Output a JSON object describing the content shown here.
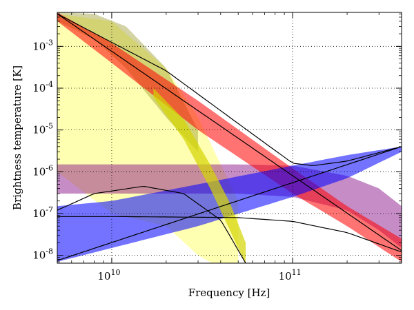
{
  "chart_data": {
    "type": "line",
    "title": "",
    "xlabel": "Frequency [Hz]",
    "ylabel": "Brightness temperature [K]",
    "xscale": "log",
    "yscale": "log",
    "xlim": [
      5000000000.0,
      400000000000.0
    ],
    "ylim": [
      6.5e-09,
      0.0065
    ],
    "grid": true,
    "grid_style": "dotted",
    "x_ticks": [
      {
        "value": 10000000000.0,
        "base": "10",
        "exp": "10"
      },
      {
        "value": 100000000000.0,
        "base": "10",
        "exp": "11"
      }
    ],
    "y_ticks": [
      {
        "value": 1e-08,
        "base": "10",
        "exp": "-8"
      },
      {
        "value": 1e-07,
        "base": "10",
        "exp": "-7"
      },
      {
        "value": 1e-06,
        "base": "10",
        "exp": "-6"
      },
      {
        "value": 1e-05,
        "base": "10",
        "exp": "-5"
      },
      {
        "value": 0.0001,
        "base": "10",
        "exp": "-4"
      },
      {
        "value": 0.001,
        "base": "10",
        "exp": "-3"
      }
    ],
    "bands": [
      {
        "color": "#ffff00",
        "opacity": 0.3,
        "x": [
          5000000000.0,
          10000000000.0,
          20000000000.0,
          30000000000.0,
          40000000000.0,
          50000000000.0
        ],
        "upper": [
          0.006,
          0.004,
          0.0003,
          2e-05,
          1.5e-06,
          2e-07
        ],
        "lower": [
          1e-06,
          1e-07,
          5e-08,
          1e-08,
          5e-09,
          3e-09
        ]
      },
      {
        "color": "#808000",
        "opacity": 0.35,
        "x": [
          5000000000.0,
          8000000000.0,
          12000000000.0,
          20000000000.0,
          30000000000.0
        ],
        "upper": [
          0.0065,
          0.006,
          0.003,
          0.0003,
          1e-05
        ],
        "lower": [
          0.004,
          0.0015,
          0.0003,
          2e-05,
          3e-06
        ]
      },
      {
        "color": "#800080",
        "opacity": 0.45,
        "x": [
          5000000000.0,
          50000000000.0,
          100000000000.0,
          200000000000.0,
          300000000000.0,
          400000000000.0
        ],
        "upper": [
          1.5e-06,
          1.5e-06,
          1.4e-06,
          8e-07,
          4e-07,
          1.5e-07
        ],
        "lower": [
          3e-07,
          3e-07,
          2.5e-07,
          1.2e-07,
          4e-08,
          1.5e-08
        ]
      },
      {
        "color": "#ff0000",
        "opacity": 0.55,
        "x": [
          5000000000.0,
          10000000000.0,
          30000000000.0,
          100000000000.0,
          200000000000.0,
          400000000000.0
        ],
        "upper": [
          0.0065,
          0.0012,
          5e-05,
          1.2e-06,
          1.5e-07,
          2.5e-08
        ],
        "lower": [
          0.004,
          0.0004,
          1e-05,
          3e-07,
          5e-08,
          7e-09
        ]
      },
      {
        "color": "#0000ff",
        "opacity": 0.55,
        "x": [
          5000000000.0,
          10000000000.0,
          30000000000.0,
          100000000000.0,
          200000000000.0,
          400000000000.0
        ],
        "upper": [
          1.5e-07,
          2e-07,
          5e-07,
          1.4e-06,
          2.5e-06,
          4e-06
        ],
        "lower": [
          7e-09,
          1.5e-08,
          5e-08,
          2.5e-07,
          7e-07,
          3e-06
        ]
      },
      {
        "color": "#d4d400",
        "opacity": 0.7,
        "x": [
          17000000000.0,
          25000000000.0,
          35000000000.0,
          45000000000.0,
          55000000000.0
        ],
        "upper": [
          0.0001,
          1.8e-05,
          1.5e-06,
          1.8e-07,
          2e-08
        ],
        "lower": [
          6e-05,
          6e-06,
          4e-07,
          4e-08,
          6e-09
        ]
      }
    ],
    "series": [
      {
        "color": "#000000",
        "x": [
          5000000000.0,
          8000000000.0,
          15000000000.0,
          25000000000.0,
          40000000000.0,
          55000000000.0
        ],
        "values": [
          1.2e-07,
          3e-07,
          4.5e-07,
          3e-07,
          7e-08,
          6.5e-09
        ]
      },
      {
        "color": "#000000",
        "x": [
          5000000000.0,
          10000000000.0,
          50000000000.0,
          100000000000.0,
          200000000000.0,
          400000000000.0
        ],
        "values": [
          8.5e-08,
          8.5e-08,
          8e-08,
          6.5e-08,
          3.5e-08,
          1.2e-08
        ]
      },
      {
        "color": "#000000",
        "x": [
          5000000000.0,
          20000000000.0,
          60000000000.0,
          100000000000.0,
          130000000000.0,
          200000000000.0,
          400000000000.0
        ],
        "values": [
          0.006,
          0.00026,
          8e-06,
          1.6e-06,
          1.4e-06,
          1.8e-06,
          4e-06
        ]
      },
      {
        "color": "#000000",
        "x": [
          5000000000.0,
          400000000000.0
        ],
        "values": [
          0.006,
          1.3e-08
        ]
      },
      {
        "color": "#000000",
        "x": [
          5000000000.0,
          400000000000.0
        ],
        "values": [
          7.5e-09,
          4e-06
        ]
      }
    ]
  }
}
